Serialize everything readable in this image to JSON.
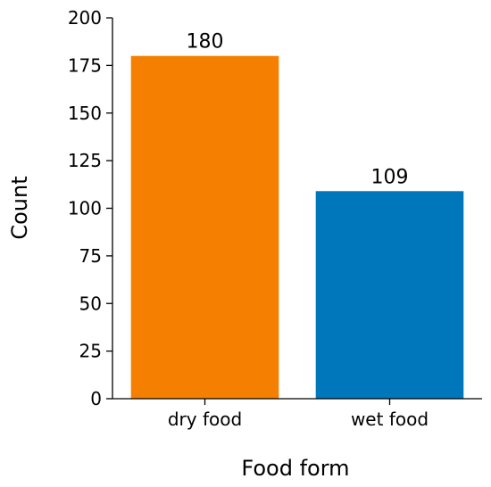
{
  "chart_data": {
    "type": "bar",
    "categories": [
      "dry food",
      "wet food"
    ],
    "values": [
      180,
      109
    ],
    "data_labels": [
      "180",
      "109"
    ],
    "colors": [
      "#f57f00",
      "#0077bb"
    ],
    "title": "",
    "xlabel": "Food form",
    "ylabel": "Count",
    "ylim": [
      0,
      200
    ],
    "yticks": [
      0,
      25,
      50,
      75,
      100,
      125,
      150,
      175,
      200
    ],
    "grid": false,
    "legend": "none"
  }
}
